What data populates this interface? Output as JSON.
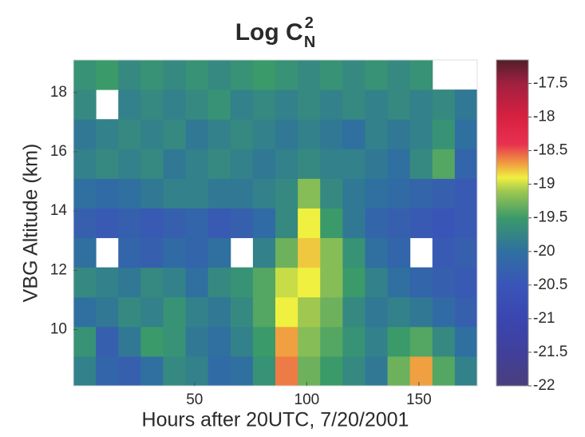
{
  "chart_data": {
    "type": "heatmap",
    "title": {
      "text": "Log C",
      "subscript": "N",
      "superscript": "2"
    },
    "x_label": "Hours after 20UTC, 7/20/2001",
    "y_label": "VBG Altitude (km)",
    "xlim": [
      -4,
      176
    ],
    "ylim": [
      8.1,
      19.1
    ],
    "xticks": [
      50,
      100,
      150
    ],
    "yticks": [
      10,
      12,
      14,
      16,
      18
    ],
    "x_edges": [
      -4,
      6,
      16,
      26,
      36,
      46,
      56,
      66,
      76,
      86,
      96,
      106,
      116,
      126,
      136,
      146,
      156,
      166,
      176
    ],
    "y_edges": [
      8.1,
      9.1,
      10.1,
      11.1,
      12.1,
      13.1,
      14.1,
      15.1,
      16.1,
      17.1,
      18.1,
      19.1
    ],
    "z": [
      [
        -19.8,
        -20.2,
        -20.3,
        -20.0,
        -19.7,
        -19.8,
        -20.1,
        -20.0,
        -19.6,
        -18.6,
        -19.3,
        -19.5,
        -19.7,
        -19.9,
        -19.3,
        -18.7,
        -19.4,
        -19.8
      ],
      [
        -19.6,
        -20.3,
        -19.9,
        -19.5,
        -19.6,
        -19.9,
        -20.0,
        -19.8,
        -19.5,
        -18.7,
        -19.2,
        -19.4,
        -19.6,
        -19.8,
        -19.5,
        -19.4,
        -19.7,
        -20.0
      ],
      [
        -20.0,
        -19.9,
        -19.7,
        -19.8,
        -19.6,
        -19.8,
        -19.9,
        -19.7,
        -19.4,
        -18.9,
        -19.1,
        -19.3,
        -19.7,
        -19.9,
        -19.8,
        -19.9,
        -20.1,
        -20.3
      ],
      [
        -19.7,
        -19.8,
        -19.9,
        -19.7,
        -19.8,
        -20.0,
        -19.7,
        -19.6,
        -19.4,
        -19.0,
        -18.9,
        -19.2,
        -19.5,
        -19.8,
        -20.0,
        -20.2,
        -20.3,
        -20.4
      ],
      [
        -20.0,
        null,
        -20.2,
        -20.3,
        -20.1,
        -20.2,
        -20.0,
        null,
        -19.8,
        -19.3,
        -18.8,
        -19.2,
        -19.6,
        -20.0,
        -20.2,
        null,
        -20.4,
        -20.3
      ],
      [
        -20.3,
        -20.4,
        -20.3,
        -20.4,
        -20.3,
        -20.2,
        -20.4,
        -20.3,
        -20.1,
        -19.7,
        -18.9,
        -19.5,
        -19.9,
        -20.2,
        -20.3,
        -20.4,
        -20.5,
        -20.4
      ],
      [
        -20.0,
        -20.1,
        -20.0,
        -19.9,
        -19.8,
        -19.8,
        -19.9,
        -19.9,
        -19.8,
        -19.7,
        -19.2,
        -19.7,
        -19.9,
        -20.0,
        -20.1,
        -20.2,
        -20.3,
        -20.4
      ],
      [
        -19.8,
        -19.7,
        -19.8,
        -19.7,
        -19.9,
        -19.8,
        -19.7,
        -19.8,
        -19.9,
        -19.8,
        -19.7,
        -19.8,
        -19.8,
        -19.9,
        -20.0,
        -19.7,
        -19.4,
        -20.2
      ],
      [
        -19.9,
        -19.8,
        -19.7,
        -19.8,
        -19.7,
        -19.9,
        -19.8,
        -19.7,
        -19.8,
        -19.9,
        -19.8,
        -19.9,
        -20.0,
        -19.8,
        -19.9,
        -19.8,
        -19.6,
        -20.0
      ],
      [
        -19.7,
        null,
        -19.8,
        -19.7,
        -19.8,
        -19.7,
        -19.6,
        -19.8,
        -19.7,
        -19.8,
        -19.7,
        -19.8,
        -19.7,
        -19.8,
        -19.7,
        -19.8,
        -19.7,
        -19.9
      ],
      [
        -19.6,
        -19.5,
        -19.7,
        -19.6,
        -19.7,
        -19.6,
        -19.7,
        -19.6,
        -19.5,
        -19.6,
        -19.7,
        -19.6,
        -19.7,
        -19.6,
        -19.7,
        -19.6,
        null,
        null
      ]
    ],
    "clim": [
      -22,
      -17.15
    ],
    "cticks": [
      -17.5,
      -18,
      -18.5,
      -19,
      -19.5,
      -20,
      -20.5,
      -21,
      -21.5,
      -22
    ],
    "colorscale": [
      [
        -22,
        "#4a3f7d"
      ],
      [
        -21.5,
        "#40409a"
      ],
      [
        -21,
        "#3a46b0"
      ],
      [
        -20.5,
        "#3a55b8"
      ],
      [
        -20,
        "#2f70a0"
      ],
      [
        -19.5,
        "#3a9a6a"
      ],
      [
        -19.1,
        "#a0c850"
      ],
      [
        -18.9,
        "#f0f040"
      ],
      [
        -18.7,
        "#f0a040"
      ],
      [
        -18.4,
        "#e83050"
      ],
      [
        -18,
        "#d82040"
      ],
      [
        -17.5,
        "#a02040"
      ],
      [
        -17.15,
        "#502028"
      ]
    ],
    "missing_color": "#ffffff"
  }
}
